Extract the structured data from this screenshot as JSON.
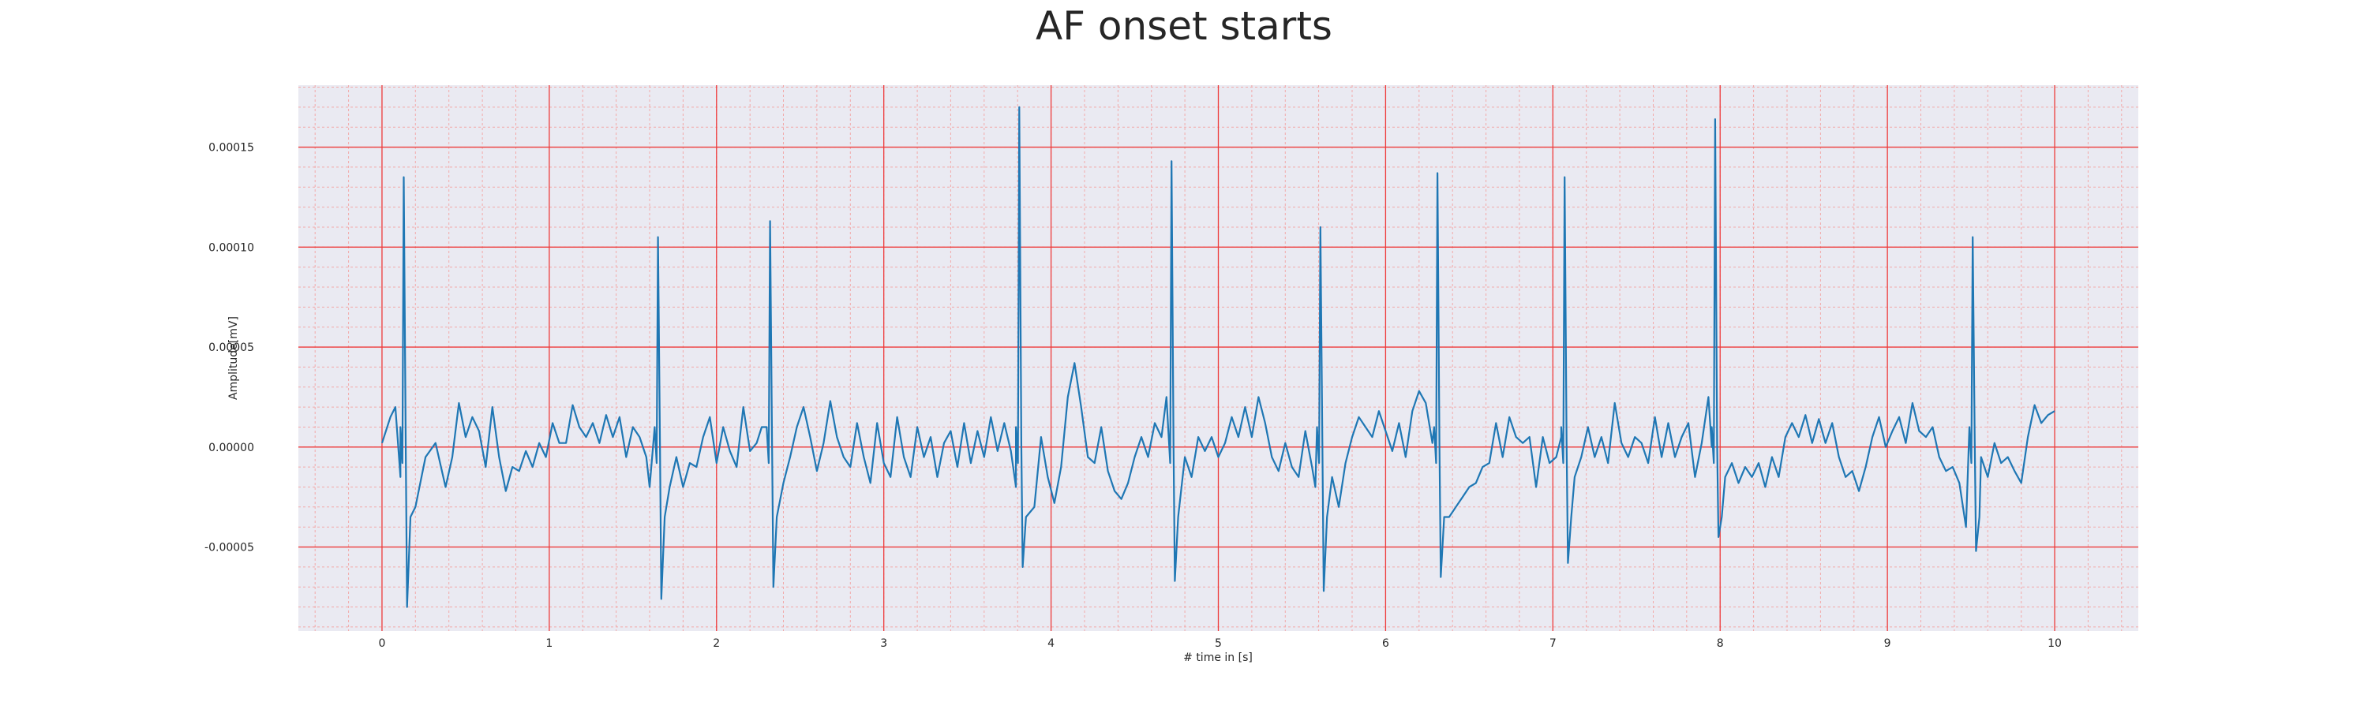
{
  "chart_data": {
    "type": "line",
    "title": "AF onset starts",
    "xlabel": "# time in [s]",
    "ylabel": "Amplitude[mV]",
    "xlim": [
      -0.5,
      10.5
    ],
    "ylim": [
      -9.2e-05,
      0.000181
    ],
    "x_ticks": [
      0,
      1,
      2,
      3,
      4,
      5,
      6,
      7,
      8,
      9,
      10
    ],
    "x_tick_labels": [
      "0",
      "1",
      "2",
      "3",
      "4",
      "5",
      "6",
      "7",
      "8",
      "9",
      "10"
    ],
    "y_ticks": [
      -5e-05,
      0.0,
      5e-05,
      0.0001,
      0.00015
    ],
    "y_tick_labels": [
      "-0.00005",
      "0.00000",
      "0.00005",
      "0.00010",
      "0.00015"
    ],
    "major_grid": "on (red)",
    "minor_grid": "on (light red, dashed)",
    "series": [
      {
        "color": "#1f77b4",
        "r_peaks": [
          {
            "t": 0.13,
            "peak": 0.000135,
            "trough": -8e-05
          },
          {
            "t": 1.65,
            "peak": 0.000105,
            "trough": -7.6e-05
          },
          {
            "t": 2.32,
            "peak": 0.000113,
            "trough": -7e-05
          },
          {
            "t": 3.81,
            "peak": 0.00017,
            "trough": -6e-05
          },
          {
            "t": 4.72,
            "peak": 0.000143,
            "trough": -6.7e-05
          },
          {
            "t": 5.61,
            "peak": 0.00011,
            "trough": -7.2e-05
          },
          {
            "t": 6.31,
            "peak": 0.000137,
            "trough": -6.5e-05
          },
          {
            "t": 7.07,
            "peak": 0.000135,
            "trough": -5.8e-05
          },
          {
            "t": 7.97,
            "peak": 0.000164,
            "trough": -4.5e-05
          },
          {
            "t": 9.51,
            "peak": 0.000105,
            "trough": -5.2e-05
          }
        ],
        "baseline": [
          [
            0.0,
            2e-06
          ],
          [
            0.05,
            1.5e-05
          ],
          [
            0.08,
            2e-05
          ],
          [
            0.11,
            -1.5e-05
          ],
          [
            0.2,
            -3e-05
          ],
          [
            0.26,
            -5e-06
          ],
          [
            0.32,
            2e-06
          ],
          [
            0.38,
            -2e-05
          ],
          [
            0.42,
            -5e-06
          ],
          [
            0.46,
            2.2e-05
          ],
          [
            0.5,
            5e-06
          ],
          [
            0.54,
            1.5e-05
          ],
          [
            0.58,
            8e-06
          ],
          [
            0.62,
            -1e-05
          ],
          [
            0.66,
            2e-05
          ],
          [
            0.7,
            -5e-06
          ],
          [
            0.74,
            -2.2e-05
          ],
          [
            0.78,
            -1e-05
          ],
          [
            0.82,
            -1.2e-05
          ],
          [
            0.86,
            -2e-06
          ],
          [
            0.9,
            -1e-05
          ],
          [
            0.94,
            2e-06
          ],
          [
            0.98,
            -5e-06
          ],
          [
            1.02,
            1.2e-05
          ],
          [
            1.06,
            2e-06
          ],
          [
            1.1,
            2e-06
          ],
          [
            1.14,
            2.1e-05
          ],
          [
            1.18,
            1e-05
          ],
          [
            1.22,
            5e-06
          ],
          [
            1.26,
            1.2e-05
          ],
          [
            1.3,
            2e-06
          ],
          [
            1.34,
            1.6e-05
          ],
          [
            1.38,
            5e-06
          ],
          [
            1.42,
            1.5e-05
          ],
          [
            1.46,
            -5e-06
          ],
          [
            1.5,
            1e-05
          ],
          [
            1.54,
            5e-06
          ],
          [
            1.58,
            -5e-06
          ],
          [
            1.6,
            -2e-05
          ],
          [
            1.72,
            -2e-05
          ],
          [
            1.76,
            -5e-06
          ],
          [
            1.8,
            -2e-05
          ],
          [
            1.84,
            -8e-06
          ],
          [
            1.88,
            -1e-05
          ],
          [
            1.92,
            5e-06
          ],
          [
            1.96,
            1.5e-05
          ],
          [
            2.0,
            -8e-06
          ],
          [
            2.04,
            1e-05
          ],
          [
            2.08,
            -2e-06
          ],
          [
            2.12,
            -1e-05
          ],
          [
            2.16,
            2e-05
          ],
          [
            2.2,
            -2e-06
          ],
          [
            2.24,
            2e-06
          ],
          [
            2.27,
            1e-05
          ],
          [
            2.4,
            -1.8e-05
          ],
          [
            2.44,
            -5e-06
          ],
          [
            2.48,
            1e-05
          ],
          [
            2.52,
            2e-05
          ],
          [
            2.56,
            5e-06
          ],
          [
            2.6,
            -1.2e-05
          ],
          [
            2.64,
            2e-06
          ],
          [
            2.68,
            2.3e-05
          ],
          [
            2.72,
            5e-06
          ],
          [
            2.76,
            -5e-06
          ],
          [
            2.8,
            -1e-05
          ],
          [
            2.84,
            1.2e-05
          ],
          [
            2.88,
            -5e-06
          ],
          [
            2.92,
            -1.8e-05
          ],
          [
            2.96,
            1.2e-05
          ],
          [
            3.0,
            -8e-06
          ],
          [
            3.04,
            -1.5e-05
          ],
          [
            3.08,
            1.5e-05
          ],
          [
            3.12,
            -5e-06
          ],
          [
            3.16,
            -1.5e-05
          ],
          [
            3.2,
            1e-05
          ],
          [
            3.24,
            -5e-06
          ],
          [
            3.28,
            5e-06
          ],
          [
            3.32,
            -1.5e-05
          ],
          [
            3.36,
            2e-06
          ],
          [
            3.4,
            8e-06
          ],
          [
            3.44,
            -1e-05
          ],
          [
            3.48,
            1.2e-05
          ],
          [
            3.52,
            -8e-06
          ],
          [
            3.56,
            8e-06
          ],
          [
            3.6,
            -5e-06
          ],
          [
            3.64,
            1.5e-05
          ],
          [
            3.68,
            -2e-06
          ],
          [
            3.72,
            1.2e-05
          ],
          [
            3.76,
            -2e-06
          ],
          [
            3.79,
            -2e-05
          ],
          [
            3.9,
            -3e-05
          ],
          [
            3.94,
            5e-06
          ],
          [
            3.98,
            -1.5e-05
          ],
          [
            4.02,
            -2.8e-05
          ],
          [
            4.06,
            -1e-05
          ],
          [
            4.1,
            2.5e-05
          ],
          [
            4.14,
            4.2e-05
          ],
          [
            4.18,
            2e-05
          ],
          [
            4.22,
            -5e-06
          ],
          [
            4.26,
            -8e-06
          ],
          [
            4.3,
            1e-05
          ],
          [
            4.34,
            -1.2e-05
          ],
          [
            4.38,
            -2.2e-05
          ],
          [
            4.42,
            -2.6e-05
          ],
          [
            4.46,
            -1.8e-05
          ],
          [
            4.5,
            -5e-06
          ],
          [
            4.54,
            5e-06
          ],
          [
            4.58,
            -5e-06
          ],
          [
            4.62,
            1.2e-05
          ],
          [
            4.66,
            5e-06
          ],
          [
            4.69,
            2.5e-05
          ],
          [
            4.8,
            -5e-06
          ],
          [
            4.84,
            -1.5e-05
          ],
          [
            4.88,
            5e-06
          ],
          [
            4.92,
            -2e-06
          ],
          [
            4.96,
            5e-06
          ],
          [
            5.0,
            -5e-06
          ],
          [
            5.04,
            2e-06
          ],
          [
            5.08,
            1.5e-05
          ],
          [
            5.12,
            5e-06
          ],
          [
            5.16,
            2e-05
          ],
          [
            5.2,
            5e-06
          ],
          [
            5.24,
            2.5e-05
          ],
          [
            5.28,
            1.2e-05
          ],
          [
            5.32,
            -5e-06
          ],
          [
            5.36,
            -1.2e-05
          ],
          [
            5.4,
            2e-06
          ],
          [
            5.44,
            -1e-05
          ],
          [
            5.48,
            -1.5e-05
          ],
          [
            5.52,
            8e-06
          ],
          [
            5.56,
            -1e-05
          ],
          [
            5.58,
            -2e-05
          ],
          [
            5.68,
            -1.5e-05
          ],
          [
            5.72,
            -3e-05
          ],
          [
            5.76,
            -8e-06
          ],
          [
            5.8,
            5e-06
          ],
          [
            5.84,
            1.5e-05
          ],
          [
            5.88,
            1e-05
          ],
          [
            5.92,
            5e-06
          ],
          [
            5.96,
            1.8e-05
          ],
          [
            6.0,
            8e-06
          ],
          [
            6.04,
            -2e-06
          ],
          [
            6.08,
            1.2e-05
          ],
          [
            6.12,
            -5e-06
          ],
          [
            6.16,
            1.8e-05
          ],
          [
            6.2,
            2.8e-05
          ],
          [
            6.24,
            2.2e-05
          ],
          [
            6.28,
            2e-06
          ],
          [
            6.38,
            -3.5e-05
          ],
          [
            6.42,
            -3e-05
          ],
          [
            6.46,
            -2.5e-05
          ],
          [
            6.5,
            -2e-05
          ],
          [
            6.54,
            -1.8e-05
          ],
          [
            6.58,
            -1e-05
          ],
          [
            6.62,
            -8e-06
          ],
          [
            6.66,
            1.2e-05
          ],
          [
            6.7,
            -5e-06
          ],
          [
            6.74,
            1.5e-05
          ],
          [
            6.78,
            5e-06
          ],
          [
            6.82,
            2e-06
          ],
          [
            6.86,
            5e-06
          ],
          [
            6.9,
            -2e-05
          ],
          [
            6.94,
            5e-06
          ],
          [
            6.98,
            -8e-06
          ],
          [
            7.02,
            -5e-06
          ],
          [
            7.05,
            5e-06
          ],
          [
            7.13,
            -1.5e-05
          ],
          [
            7.17,
            -5e-06
          ],
          [
            7.21,
            1e-05
          ],
          [
            7.25,
            -5e-06
          ],
          [
            7.29,
            5e-06
          ],
          [
            7.33,
            -8e-06
          ],
          [
            7.37,
            2.2e-05
          ],
          [
            7.41,
            2e-06
          ],
          [
            7.45,
            -5e-06
          ],
          [
            7.49,
            5e-06
          ],
          [
            7.53,
            2e-06
          ],
          [
            7.57,
            -8e-06
          ],
          [
            7.61,
            1.5e-05
          ],
          [
            7.65,
            -5e-06
          ],
          [
            7.69,
            1.2e-05
          ],
          [
            7.73,
            -5e-06
          ],
          [
            7.77,
            5e-06
          ],
          [
            7.81,
            1.2e-05
          ],
          [
            7.85,
            -1.5e-05
          ],
          [
            7.89,
            2e-06
          ],
          [
            7.93,
            2.5e-05
          ],
          [
            7.95,
            0.0
          ],
          [
            8.03,
            -1.5e-05
          ],
          [
            8.07,
            -8e-06
          ],
          [
            8.11,
            -1.8e-05
          ],
          [
            8.15,
            -1e-05
          ],
          [
            8.19,
            -1.5e-05
          ],
          [
            8.23,
            -8e-06
          ],
          [
            8.27,
            -2e-05
          ],
          [
            8.31,
            -5e-06
          ],
          [
            8.35,
            -1.5e-05
          ],
          [
            8.39,
            5e-06
          ],
          [
            8.43,
            1.2e-05
          ],
          [
            8.47,
            5e-06
          ],
          [
            8.51,
            1.6e-05
          ],
          [
            8.55,
            2e-06
          ],
          [
            8.59,
            1.4e-05
          ],
          [
            8.63,
            2e-06
          ],
          [
            8.67,
            1.2e-05
          ],
          [
            8.71,
            -5e-06
          ],
          [
            8.75,
            -1.5e-05
          ],
          [
            8.79,
            -1.2e-05
          ],
          [
            8.83,
            -2.2e-05
          ],
          [
            8.87,
            -1e-05
          ],
          [
            8.91,
            5e-06
          ],
          [
            8.95,
            1.5e-05
          ],
          [
            8.99,
            0.0
          ],
          [
            9.03,
            8e-06
          ],
          [
            9.07,
            1.5e-05
          ],
          [
            9.11,
            2e-06
          ],
          [
            9.15,
            2.2e-05
          ],
          [
            9.19,
            8e-06
          ],
          [
            9.23,
            5e-06
          ],
          [
            9.27,
            1e-05
          ],
          [
            9.31,
            -5e-06
          ],
          [
            9.35,
            -1.2e-05
          ],
          [
            9.39,
            -1e-05
          ],
          [
            9.43,
            -1.8e-05
          ],
          [
            9.47,
            -4e-05
          ],
          [
            9.56,
            -5e-06
          ],
          [
            9.6,
            -1.5e-05
          ],
          [
            9.64,
            2e-06
          ],
          [
            9.68,
            -8e-06
          ],
          [
            9.72,
            -5e-06
          ],
          [
            9.76,
            -1.2e-05
          ],
          [
            9.8,
            -1.8e-05
          ],
          [
            9.84,
            5e-06
          ],
          [
            9.88,
            2.1e-05
          ],
          [
            9.92,
            1.2e-05
          ],
          [
            9.96,
            1.6e-05
          ],
          [
            10.0,
            1.8e-05
          ]
        ]
      }
    ]
  }
}
